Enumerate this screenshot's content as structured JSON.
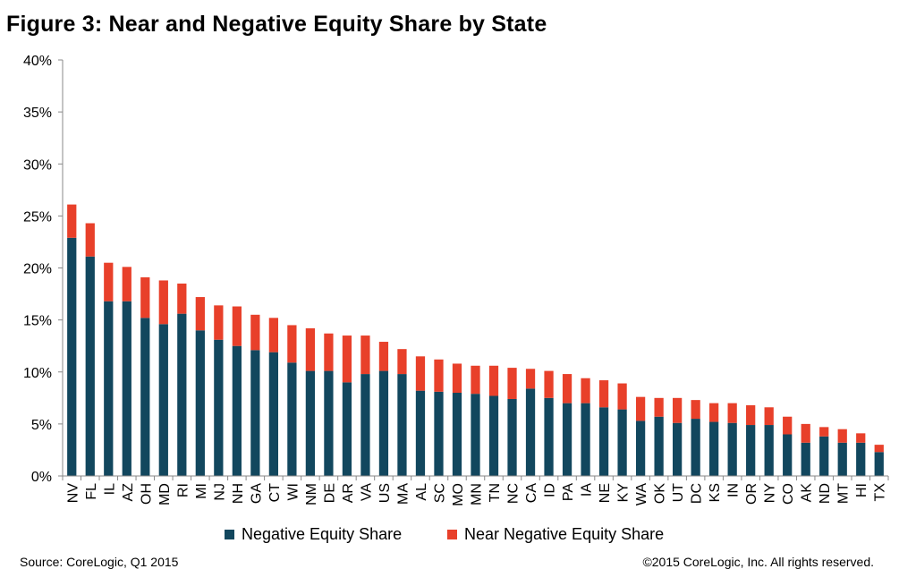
{
  "title": "Figure 3: Near and Negative Equity Share by State",
  "source": "Source: CoreLogic, Q1 2015",
  "copyright": "©2015 CoreLogic, Inc. All rights reserved.",
  "colors": {
    "negative": "#12475e",
    "near": "#e8402a",
    "axis": "#888888"
  },
  "chart_data": {
    "type": "bar",
    "stacked": true,
    "title": "Figure 3: Near and Negative Equity Share by State",
    "xlabel": "",
    "ylabel": "",
    "ylim": [
      0,
      40
    ],
    "yticks": [
      "0%",
      "5%",
      "10%",
      "15%",
      "20%",
      "25%",
      "30%",
      "35%",
      "40%"
    ],
    "grid": false,
    "legend_position": "bottom",
    "categories": [
      "NV",
      "FL",
      "IL",
      "AZ",
      "OH",
      "MD",
      "RI",
      "MI",
      "NJ",
      "NH",
      "GA",
      "CT",
      "WI",
      "NM",
      "DE",
      "AR",
      "VA",
      "US",
      "MA",
      "AL",
      "SC",
      "MO",
      "MN",
      "TN",
      "NC",
      "CA",
      "ID",
      "PA",
      "IA",
      "NE",
      "KY",
      "WA",
      "OK",
      "UT",
      "DC",
      "KS",
      "IN",
      "OR",
      "NY",
      "CO",
      "AK",
      "ND",
      "MT",
      "HI",
      "TX"
    ],
    "series": [
      {
        "name": "Negative Equity Share",
        "values": [
          22.9,
          21.1,
          16.8,
          16.8,
          15.2,
          14.6,
          15.6,
          14.0,
          13.1,
          12.5,
          12.1,
          11.9,
          10.9,
          10.1,
          10.1,
          9.0,
          9.8,
          10.1,
          9.8,
          8.2,
          8.1,
          8.0,
          7.9,
          7.7,
          7.4,
          8.4,
          7.5,
          7.0,
          7.0,
          6.6,
          6.4,
          5.3,
          5.7,
          5.1,
          5.5,
          5.2,
          5.1,
          4.9,
          4.9,
          4.0,
          3.2,
          3.8,
          3.2,
          3.2,
          2.3
        ]
      },
      {
        "name": "Near Negative Equity Share",
        "values": [
          3.2,
          3.2,
          3.7,
          3.3,
          3.9,
          4.2,
          2.9,
          3.2,
          3.3,
          3.8,
          3.4,
          3.3,
          3.6,
          4.1,
          3.6,
          4.5,
          3.7,
          2.8,
          2.4,
          3.3,
          3.1,
          2.8,
          2.7,
          2.9,
          3.0,
          1.9,
          2.6,
          2.8,
          2.4,
          2.6,
          2.5,
          2.3,
          1.8,
          2.4,
          1.8,
          1.8,
          1.9,
          1.9,
          1.7,
          1.7,
          1.8,
          0.9,
          1.3,
          0.9,
          0.7
        ]
      }
    ]
  }
}
